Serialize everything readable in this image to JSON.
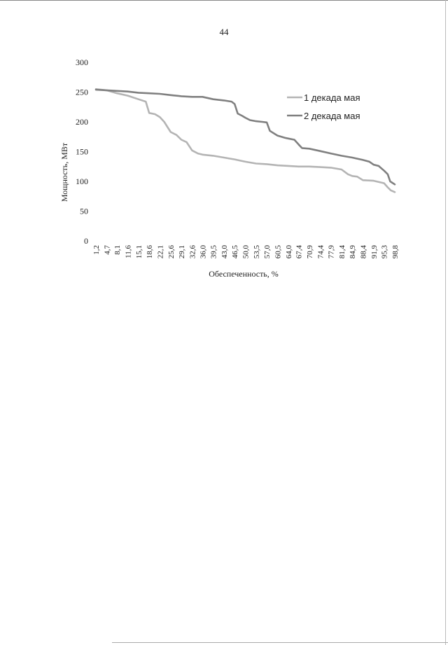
{
  "page": {
    "number": "44"
  },
  "chart_data": {
    "type": "line",
    "title": "",
    "xlabel": "Обеспеченность, %",
    "ylabel": "Мощность, МВт",
    "ylim": [
      0,
      300
    ],
    "yticks": [
      "0",
      "50",
      "100",
      "150",
      "200",
      "250",
      "300"
    ],
    "xtick_labels": [
      "1,2",
      "4,7",
      "8,1",
      "11,6",
      "15,1",
      "18,6",
      "22,1",
      "25,6",
      "29,1",
      "32,6",
      "36,0",
      "39,5",
      "43,0",
      "46,5",
      "50,0",
      "53,5",
      "57,0",
      "60,5",
      "64,0",
      "67,4",
      "70,9",
      "74,4",
      "77,9",
      "81,4",
      "84,9",
      "88,4",
      "91,9",
      "95,3",
      "98,8"
    ],
    "grid": false,
    "legend_position": "top-right",
    "series": [
      {
        "name": "1 декада мая",
        "color": "#b4b4b4",
        "points": [
          [
            1.2,
            255
          ],
          [
            4.7,
            253
          ],
          [
            8.1,
            248
          ],
          [
            11.6,
            244
          ],
          [
            15.1,
            238
          ],
          [
            17.5,
            234
          ],
          [
            18.6,
            215
          ],
          [
            20.5,
            213
          ],
          [
            22.1,
            208
          ],
          [
            23.5,
            200
          ],
          [
            25.6,
            183
          ],
          [
            27.5,
            178
          ],
          [
            29.1,
            170
          ],
          [
            30.8,
            166
          ],
          [
            32.6,
            152
          ],
          [
            34.5,
            147
          ],
          [
            36.0,
            145
          ],
          [
            39.5,
            143
          ],
          [
            43.0,
            140
          ],
          [
            46.5,
            137
          ],
          [
            50.0,
            133
          ],
          [
            53.5,
            130
          ],
          [
            57.0,
            129
          ],
          [
            60.5,
            127
          ],
          [
            64.0,
            126
          ],
          [
            67.4,
            125
          ],
          [
            70.9,
            125
          ],
          [
            74.4,
            124
          ],
          [
            77.9,
            123
          ],
          [
            81.4,
            120
          ],
          [
            83.5,
            112
          ],
          [
            84.9,
            109
          ],
          [
            86.5,
            108
          ],
          [
            88.4,
            102
          ],
          [
            91.9,
            101
          ],
          [
            95.3,
            97
          ],
          [
            96.5,
            90
          ],
          [
            97.5,
            85
          ],
          [
            98.8,
            82
          ]
        ]
      },
      {
        "name": "2 декада мая",
        "color": "#808080",
        "points": [
          [
            1.2,
            254
          ],
          [
            4.7,
            253
          ],
          [
            8.1,
            252
          ],
          [
            11.6,
            251
          ],
          [
            15.1,
            249
          ],
          [
            18.6,
            248
          ],
          [
            22.1,
            247
          ],
          [
            25.6,
            245
          ],
          [
            29.1,
            243
          ],
          [
            32.6,
            242
          ],
          [
            36.0,
            242
          ],
          [
            39.5,
            238
          ],
          [
            43.0,
            236
          ],
          [
            45.5,
            234
          ],
          [
            46.5,
            230
          ],
          [
            47.5,
            214
          ],
          [
            49.0,
            210
          ],
          [
            50.0,
            207
          ],
          [
            51.5,
            203
          ],
          [
            53.5,
            201
          ],
          [
            55.5,
            200
          ],
          [
            57.0,
            199
          ],
          [
            58.0,
            185
          ],
          [
            60.5,
            177
          ],
          [
            63.0,
            173
          ],
          [
            64.0,
            172
          ],
          [
            66.0,
            170
          ],
          [
            67.4,
            162
          ],
          [
            68.5,
            156
          ],
          [
            70.9,
            155
          ],
          [
            74.4,
            151
          ],
          [
            77.9,
            147
          ],
          [
            81.4,
            143
          ],
          [
            84.9,
            140
          ],
          [
            88.4,
            136
          ],
          [
            90.5,
            133
          ],
          [
            91.9,
            128
          ],
          [
            93.5,
            126
          ],
          [
            95.3,
            118
          ],
          [
            96.5,
            112
          ],
          [
            97.3,
            100
          ],
          [
            98.8,
            95
          ]
        ]
      }
    ]
  }
}
